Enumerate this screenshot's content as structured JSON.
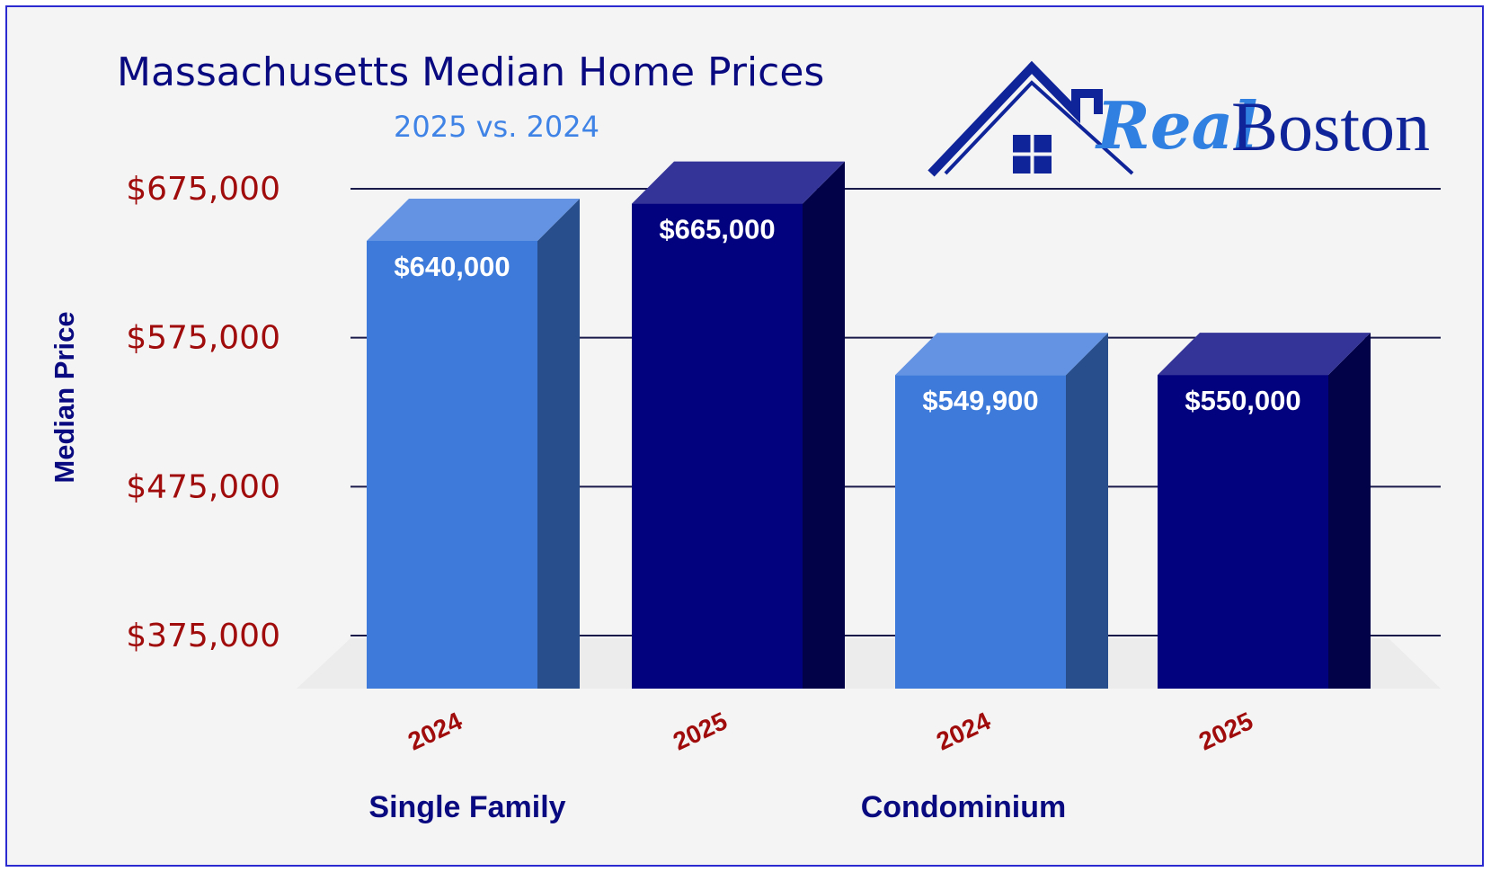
{
  "chart_data": {
    "type": "bar",
    "title": "Massachusetts Median Home Prices",
    "subtitle": "2025 vs. 2024",
    "ylabel": "Median Price",
    "ylim": [
      340000,
      675000
    ],
    "yticks": [
      375000,
      475000,
      575000,
      675000
    ],
    "ytick_labels": [
      "$375,000",
      "$475,000",
      "$575,000",
      "$675,000"
    ],
    "groups": [
      "Single Family",
      "Condominium"
    ],
    "bars": [
      {
        "group": "Single Family",
        "year": "2024",
        "value": 640000,
        "label": "$640,000"
      },
      {
        "group": "Single Family",
        "year": "2025",
        "value": 665000,
        "label": "$665,000"
      },
      {
        "group": "Condominium",
        "year": "2024",
        "value": 549900,
        "label": "$549,900"
      },
      {
        "group": "Condominium",
        "year": "2025",
        "value": 550000,
        "label": "$550,000"
      }
    ],
    "grid": true,
    "colors": {
      "2024": "#3d7ad9",
      "2025": "#02027e"
    }
  },
  "logo": {
    "real": "Real",
    "boston": "Boston"
  }
}
